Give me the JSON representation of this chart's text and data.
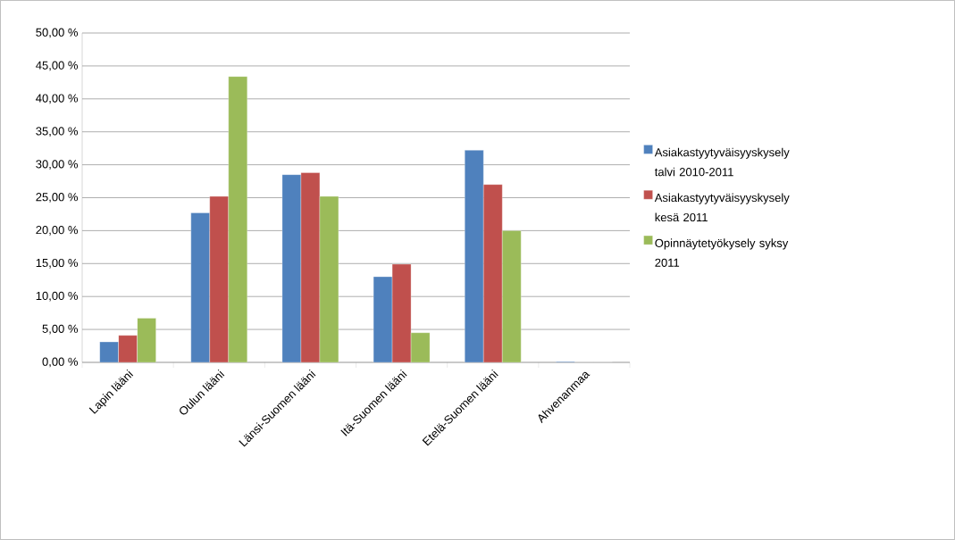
{
  "chart_data": {
    "type": "bar",
    "categories": [
      "Lapin lääni",
      "Oulun lääni",
      "Länsi-Suomen lääni",
      "Itä-Suomen lääni",
      "Etelä-Suomen lääni",
      "Ahvenanmaa"
    ],
    "series": [
      {
        "name": "Asiakastyytyväisyyskysely talvi 2010-2011",
        "color": "#4f81bd",
        "values": [
          3.1,
          22.7,
          28.5,
          13.0,
          32.2,
          0.1
        ]
      },
      {
        "name": "Asiakastyytyväisyyskysely kesä 2011",
        "color": "#c0504d",
        "values": [
          4.1,
          25.2,
          28.8,
          14.9,
          27.0,
          0
        ]
      },
      {
        "name": "Opinnäytetyökysely syksy 2011",
        "color": "#9bbb59",
        "values": [
          6.7,
          43.4,
          25.2,
          4.5,
          20.0,
          0
        ]
      }
    ],
    "ylim": [
      0,
      50
    ],
    "yticks": [
      {
        "value": 0,
        "label": "0,00 %"
      },
      {
        "value": 5,
        "label": "5,00 %"
      },
      {
        "value": 10,
        "label": "10,00 %"
      },
      {
        "value": 15,
        "label": "15,00 %"
      },
      {
        "value": 20,
        "label": "20,00 %"
      },
      {
        "value": 25,
        "label": "25,00 %"
      },
      {
        "value": 30,
        "label": "30,00 %"
      },
      {
        "value": 35,
        "label": "35,00 %"
      },
      {
        "value": 40,
        "label": "40,00 %"
      },
      {
        "value": 45,
        "label": "45,00 %"
      },
      {
        "value": 50,
        "label": "50,00 %"
      }
    ],
    "grid": "y",
    "legend": "right"
  }
}
